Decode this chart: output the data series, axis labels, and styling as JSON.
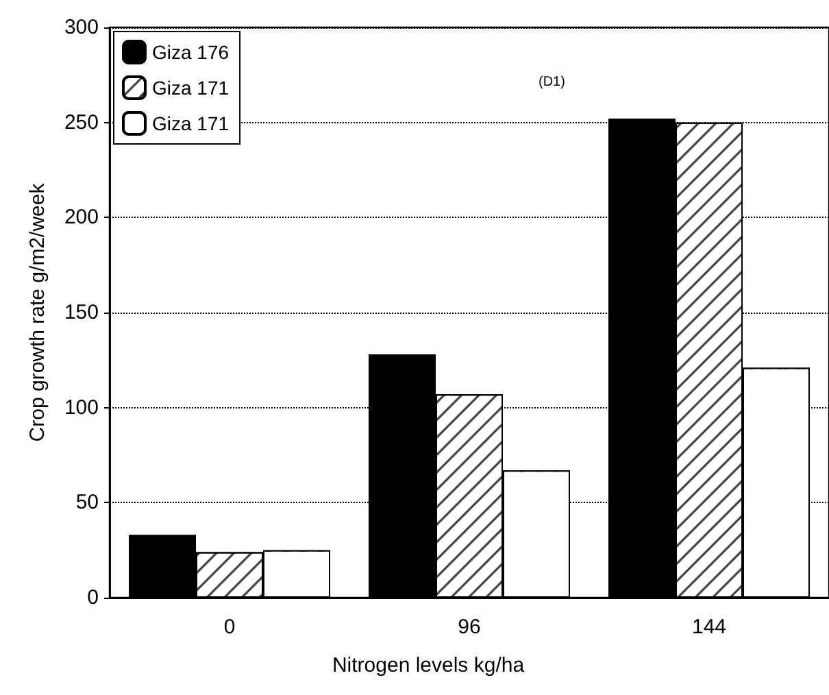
{
  "chart_data": {
    "type": "bar",
    "xlabel": "Nitrogen levels kg/ha",
    "ylabel": "Crop growth rate g/m2/week",
    "annotations": [
      "(D1)"
    ],
    "categories": [
      "0",
      "96",
      "144"
    ],
    "series": [
      {
        "name": "Giza 176",
        "color": "#000000",
        "values": [
          33,
          128,
          252
        ]
      },
      {
        "name": "Giza 171",
        "color": "#ffffff",
        "values": [
          24,
          107,
          250
        ]
      },
      {
        "name": "Giza 171",
        "color": "#ffffff",
        "values": [
          25,
          67,
          121
        ]
      }
    ],
    "ylim": [
      0,
      300
    ],
    "yticks": [
      0,
      50,
      100,
      150,
      200,
      250,
      300
    ],
    "grid": "y",
    "legend": "top left"
  }
}
